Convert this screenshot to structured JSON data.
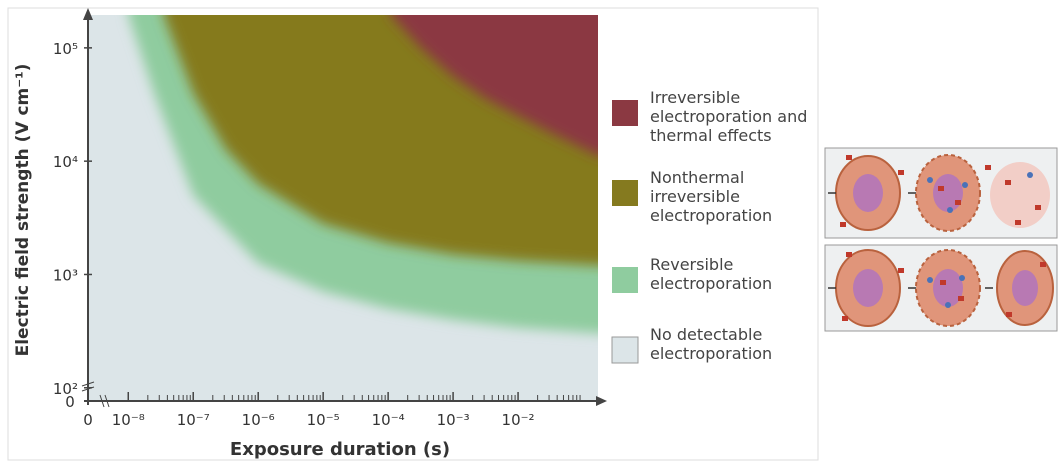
{
  "chart_data": {
    "type": "region",
    "x_label": "Exposure duration (s)",
    "y_label": "Electric field strength (V cm⁻¹)",
    "x_zero_label": "0",
    "y_zero_label": "0",
    "log_x": true,
    "log_y": true,
    "xlim": [
      2.4e-09,
      0.17
    ],
    "ylim": [
      78,
      195000
    ],
    "xticks": [
      {
        "value": 1e-08,
        "label": "10⁻⁸"
      },
      {
        "value": 1e-07,
        "label": "10⁻⁷"
      },
      {
        "value": 1e-06,
        "label": "10⁻⁶"
      },
      {
        "value": 1e-05,
        "label": "10⁻⁵"
      },
      {
        "value": 0.0001,
        "label": "10⁻⁴"
      },
      {
        "value": 0.001,
        "label": "10⁻³"
      },
      {
        "value": 0.01,
        "label": "10⁻²"
      }
    ],
    "yticks": [
      {
        "value": 100,
        "label": "10²"
      },
      {
        "value": 1000,
        "label": "10³"
      },
      {
        "value": 10000,
        "label": "10⁴"
      },
      {
        "value": 100000,
        "label": "10⁵"
      }
    ],
    "series": [
      {
        "name": "No detectable electroporation",
        "color": "#dce5e8",
        "x": [],
        "values": []
      },
      {
        "name": "Reversible electroporation",
        "color": "#8fcc9f",
        "x": [
          1e-08,
          2.5e-08,
          1e-07,
          1e-06,
          1e-05,
          0.0001,
          0.001,
          0.01,
          0.17
        ],
        "values": [
          195000,
          39800,
          5000,
          1260,
          708,
          500,
          398,
          339,
          302
        ]
      },
      {
        "name": "Nonthermal irreversible electroporation",
        "color": "#857a1f",
        "x": [
          3.5e-08,
          1e-07,
          3.2e-07,
          1e-06,
          1e-05,
          0.0001,
          0.001,
          0.01,
          0.17
        ],
        "values": [
          195000,
          39800,
          12600,
          6300,
          2800,
          1900,
          1500,
          1320,
          1200
        ]
      },
      {
        "name": "Irreversible electroporation and thermal effects",
        "color": "#8b3942",
        "x": [
          0.00011,
          0.00032,
          0.001,
          0.0032,
          0.01,
          0.032,
          0.17
        ],
        "values": [
          195000,
          100000,
          56000,
          35500,
          25100,
          17800,
          11200
        ]
      }
    ]
  }
}
